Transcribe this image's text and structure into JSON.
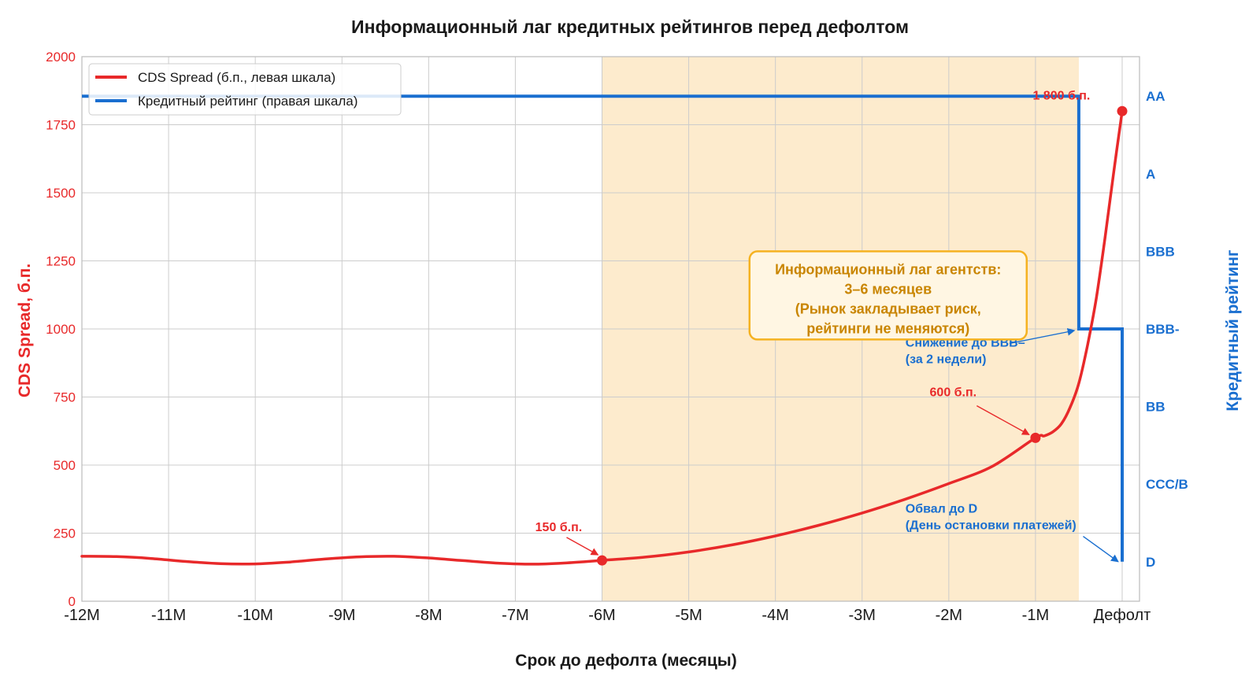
{
  "chart_data": {
    "type": "line",
    "title": "Информационный лаг кредитных рейтингов перед дефолтом",
    "xlabel": "Срок до дефолта (месяцы)",
    "ylabel": "CDS Spread, б.п.",
    "ylabel_right": "Кредитный рейтинг",
    "x_ticks": [
      {
        "value": -12,
        "label": "-12M"
      },
      {
        "value": -11,
        "label": "-11M"
      },
      {
        "value": -10,
        "label": "-10M"
      },
      {
        "value": -9,
        "label": "-9M"
      },
      {
        "value": -8,
        "label": "-8M"
      },
      {
        "value": -7,
        "label": "-7M"
      },
      {
        "value": -6,
        "label": "-6M"
      },
      {
        "value": -5,
        "label": "-5M"
      },
      {
        "value": -4,
        "label": "-4M"
      },
      {
        "value": -3,
        "label": "-3M"
      },
      {
        "value": -2,
        "label": "-2M"
      },
      {
        "value": -1,
        "label": "-1M"
      },
      {
        "value": 0,
        "label": "Дефолт"
      }
    ],
    "xlim": [
      -12,
      0.2
    ],
    "ylim": [
      0,
      2000
    ],
    "y_ticks": [
      0,
      250,
      500,
      750,
      1000,
      1250,
      1500,
      1750,
      2000
    ],
    "y_right_ticks": [
      {
        "value": 1855,
        "label": "AA"
      },
      {
        "value": 1570,
        "label": "A"
      },
      {
        "value": 1285,
        "label": "BBB"
      },
      {
        "value": 1000,
        "label": "BBB-"
      },
      {
        "value": 715,
        "label": "BB"
      },
      {
        "value": 430,
        "label": "CCC/B"
      },
      {
        "value": 145,
        "label": "D"
      }
    ],
    "grid": true,
    "legend_position": "top-left",
    "shaded_region": {
      "x_start": -6,
      "x_end": -0.5,
      "color": "#fde7c4"
    },
    "series": [
      {
        "name": "CDS Spread (б.п., левая шкала)",
        "color": "#e8292a",
        "points": [
          [
            -12.0,
            165
          ],
          [
            -11.6,
            164
          ],
          [
            -11.2,
            157
          ],
          [
            -10.8,
            146
          ],
          [
            -10.4,
            138
          ],
          [
            -10.0,
            137
          ],
          [
            -9.6,
            144
          ],
          [
            -9.2,
            155
          ],
          [
            -8.8,
            163
          ],
          [
            -8.4,
            165
          ],
          [
            -8.0,
            159
          ],
          [
            -7.6,
            149
          ],
          [
            -7.2,
            140
          ],
          [
            -6.8,
            136
          ],
          [
            -6.4,
            141
          ],
          [
            -6.0,
            150
          ],
          [
            -5.5,
            162
          ],
          [
            -5.0,
            181
          ],
          [
            -4.5,
            207
          ],
          [
            -4.0,
            240
          ],
          [
            -3.5,
            279
          ],
          [
            -3.0,
            324
          ],
          [
            -2.5,
            375
          ],
          [
            -2.0,
            432
          ],
          [
            -1.5,
            495
          ],
          [
            -1.0,
            600
          ],
          [
            -0.9,
            607
          ],
          [
            -0.8,
            622
          ],
          [
            -0.7,
            652
          ],
          [
            -0.6,
            712
          ],
          [
            -0.5,
            800
          ],
          [
            -0.4,
            940
          ],
          [
            -0.3,
            1110
          ],
          [
            -0.2,
            1330
          ],
          [
            -0.1,
            1570
          ],
          [
            0.0,
            1800
          ]
        ],
        "markers": [
          [
            -6.0,
            150
          ],
          [
            -1.0,
            600
          ],
          [
            0.0,
            1800
          ]
        ]
      },
      {
        "name": "Кредитный рейтинг (правая шкала)",
        "color": "#1a6fd0",
        "step_points": [
          [
            -12.0,
            1855
          ],
          [
            -0.5,
            1855
          ],
          [
            -0.5,
            1000
          ],
          [
            0.0,
            1000
          ],
          [
            0.0,
            145
          ]
        ]
      }
    ],
    "annotations": {
      "lag_box": {
        "lines": [
          "Информационный лаг агентств:",
          "3–6 месяцев",
          "(Рынок закладывает риск,",
          "рейтинги не меняются)"
        ],
        "border_color": "#f5b221",
        "text_color": "#c98500",
        "x": -2.7,
        "y": 1100
      },
      "label_1800": {
        "text": "1 800 б.п.",
        "x": -0.7,
        "y": 1860
      },
      "label_600": {
        "text": "600 б.п.",
        "x": -1.95,
        "y": 770
      },
      "label_150": {
        "text": "150 б.п.",
        "x": -6.5,
        "y": 275
      },
      "label_bbb_minus": {
        "lines": [
          "Снижение до BBB–",
          "(за 2 недели)"
        ],
        "x": -2.5,
        "y": 935
      },
      "label_d": {
        "lines": [
          "Обвал до D",
          "(День остановки платежей)"
        ],
        "x": -2.5,
        "y": 325
      }
    }
  }
}
